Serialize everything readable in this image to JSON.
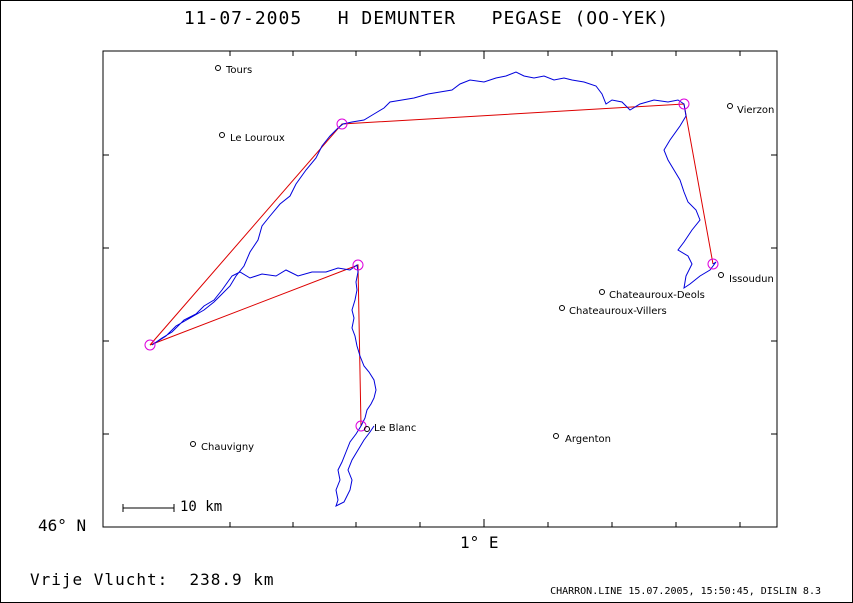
{
  "header": {
    "date": "11-07-2005",
    "pilot": "H DEMUNTER",
    "glider": "PEGASE (OO-YEK)"
  },
  "axes": {
    "lat_label": "46° N",
    "lon_label": "1° E"
  },
  "scale": {
    "label": "10 km"
  },
  "distance": {
    "label": "Vrije Vlucht:",
    "value": "238.9 km"
  },
  "footer": "CHARRON.LINE 15.07.2005, 15:50:45, DISLIN 8.3",
  "towns": [
    {
      "id": "tours",
      "name": "Tours"
    },
    {
      "id": "le-louroux",
      "name": "Le Louroux"
    },
    {
      "id": "vierzon",
      "name": "Vierzon"
    },
    {
      "id": "issoudun",
      "name": "Issoudun"
    },
    {
      "id": "chateauroux-deols",
      "name": "Chateauroux-Deols"
    },
    {
      "id": "chateauroux-villers",
      "name": "Chateauroux-Villers"
    },
    {
      "id": "le-blanc",
      "name": "Le Blanc"
    },
    {
      "id": "argenton",
      "name": "Argenton"
    },
    {
      "id": "chauvigny",
      "name": "Chauvigny"
    }
  ],
  "colors": {
    "track": "#0000dd",
    "task": "#dd0000",
    "turnpoint": "#dd00dd",
    "frame": "#000000"
  }
}
